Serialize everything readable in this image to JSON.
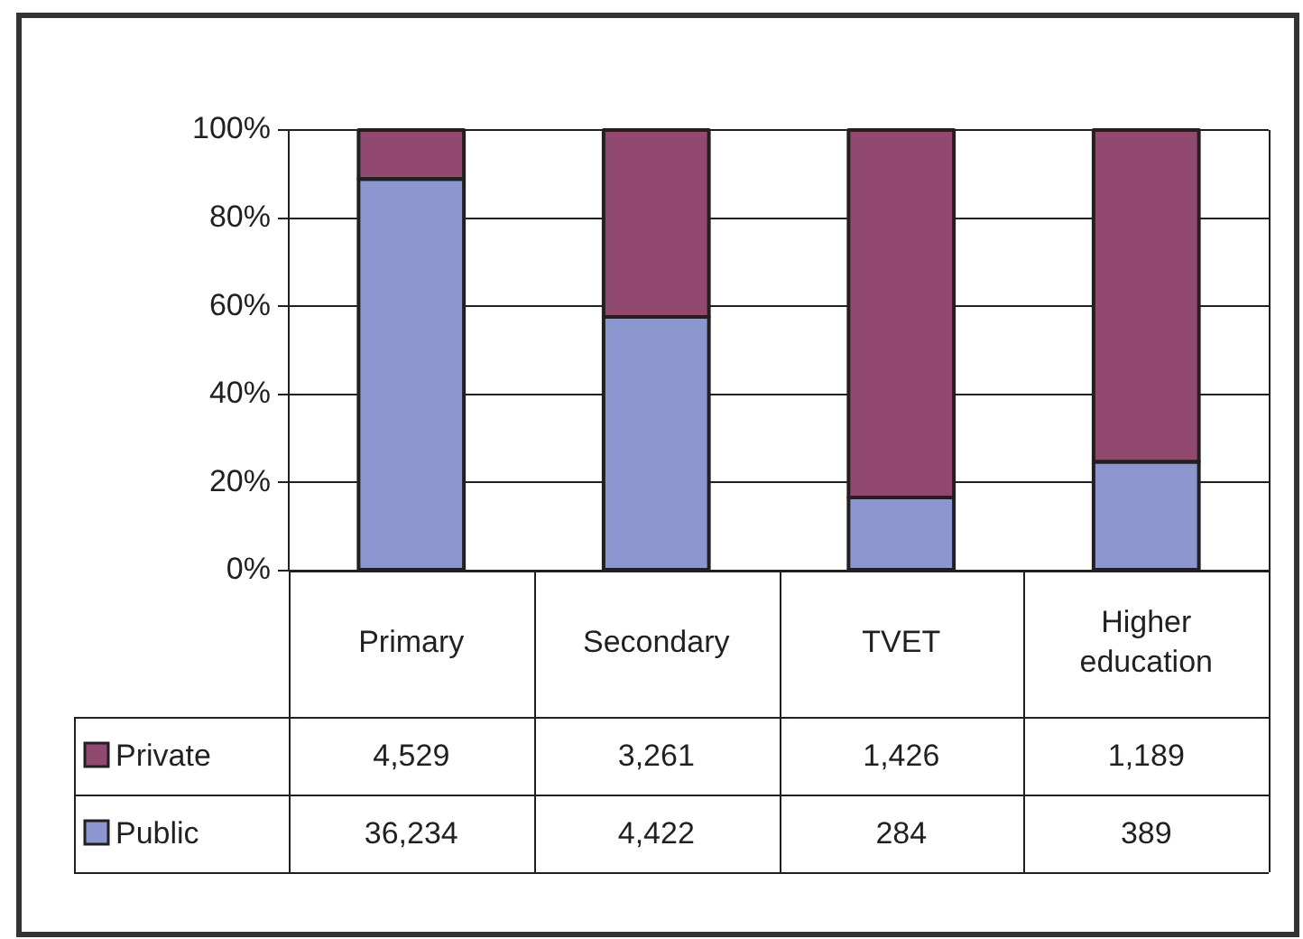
{
  "chart_data": {
    "type": "bar",
    "categories": [
      "Primary",
      "Secondary",
      "TVET",
      "Higher education"
    ],
    "series": [
      {
        "name": "Public",
        "color": "#8c97cf",
        "values": [
          88.9,
          57.6,
          16.6,
          24.7
        ]
      },
      {
        "name": "Private",
        "color": "#92496f",
        "values": [
          11.1,
          42.4,
          83.4,
          75.3
        ]
      }
    ],
    "stacked": true,
    "ylim": [
      0,
      100
    ],
    "yticks": [
      {
        "value": 0,
        "label": "0%"
      },
      {
        "value": 20,
        "label": "20%"
      },
      {
        "value": 40,
        "label": "40%"
      },
      {
        "value": 60,
        "label": "60%"
      },
      {
        "value": 80,
        "label": "80%"
      },
      {
        "value": 100,
        "label": "100%"
      }
    ],
    "annotations": [
      "4,529",
      "3,261",
      "1,426",
      "1,189",
      "36,234",
      "4,422",
      "284",
      "389"
    ],
    "grid": "y",
    "legend": "bottom"
  }
}
